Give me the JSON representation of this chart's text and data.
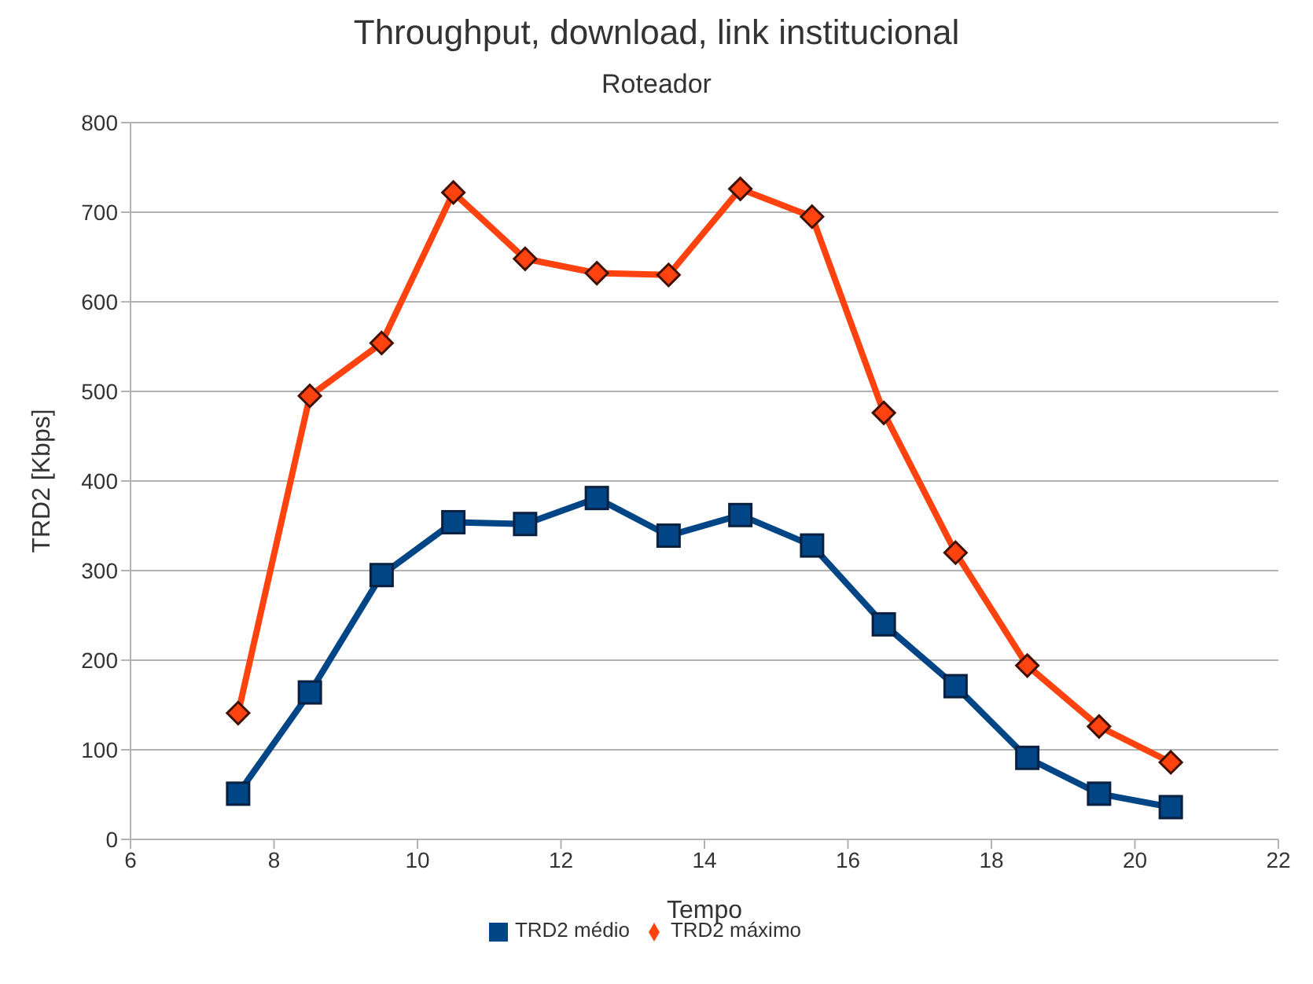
{
  "chart_data": {
    "type": "line",
    "title": "Throughput, download, link institucional",
    "subtitle": "Roteador",
    "xlabel": "Tempo",
    "ylabel": "TRD2 [Kbps]",
    "x": [
      7.5,
      8.5,
      9.5,
      10.5,
      11.5,
      12.5,
      13.5,
      14.5,
      15.5,
      16.5,
      17.5,
      18.5,
      19.5,
      20.5
    ],
    "series": [
      {
        "name": "TRD2 médio",
        "color": "#004586",
        "marker": "square",
        "values": [
          51,
          164,
          295,
          354,
          352,
          381,
          339,
          362,
          328,
          240,
          171,
          91,
          51,
          36
        ]
      },
      {
        "name": "TRD2 máximo",
        "color": "#ff420e",
        "marker": "diamond",
        "values": [
          141,
          495,
          554,
          722,
          648,
          632,
          630,
          726,
          695,
          476,
          320,
          194,
          126,
          86
        ]
      }
    ],
    "xlim": [
      6,
      22
    ],
    "xticks": [
      6,
      8,
      10,
      12,
      14,
      16,
      18,
      20,
      22
    ],
    "ylim": [
      0,
      800
    ],
    "yticks": [
      0,
      100,
      200,
      300,
      400,
      500,
      600,
      700,
      800
    ],
    "grid": "y",
    "legend": "bottom",
    "line_style": "solid"
  }
}
